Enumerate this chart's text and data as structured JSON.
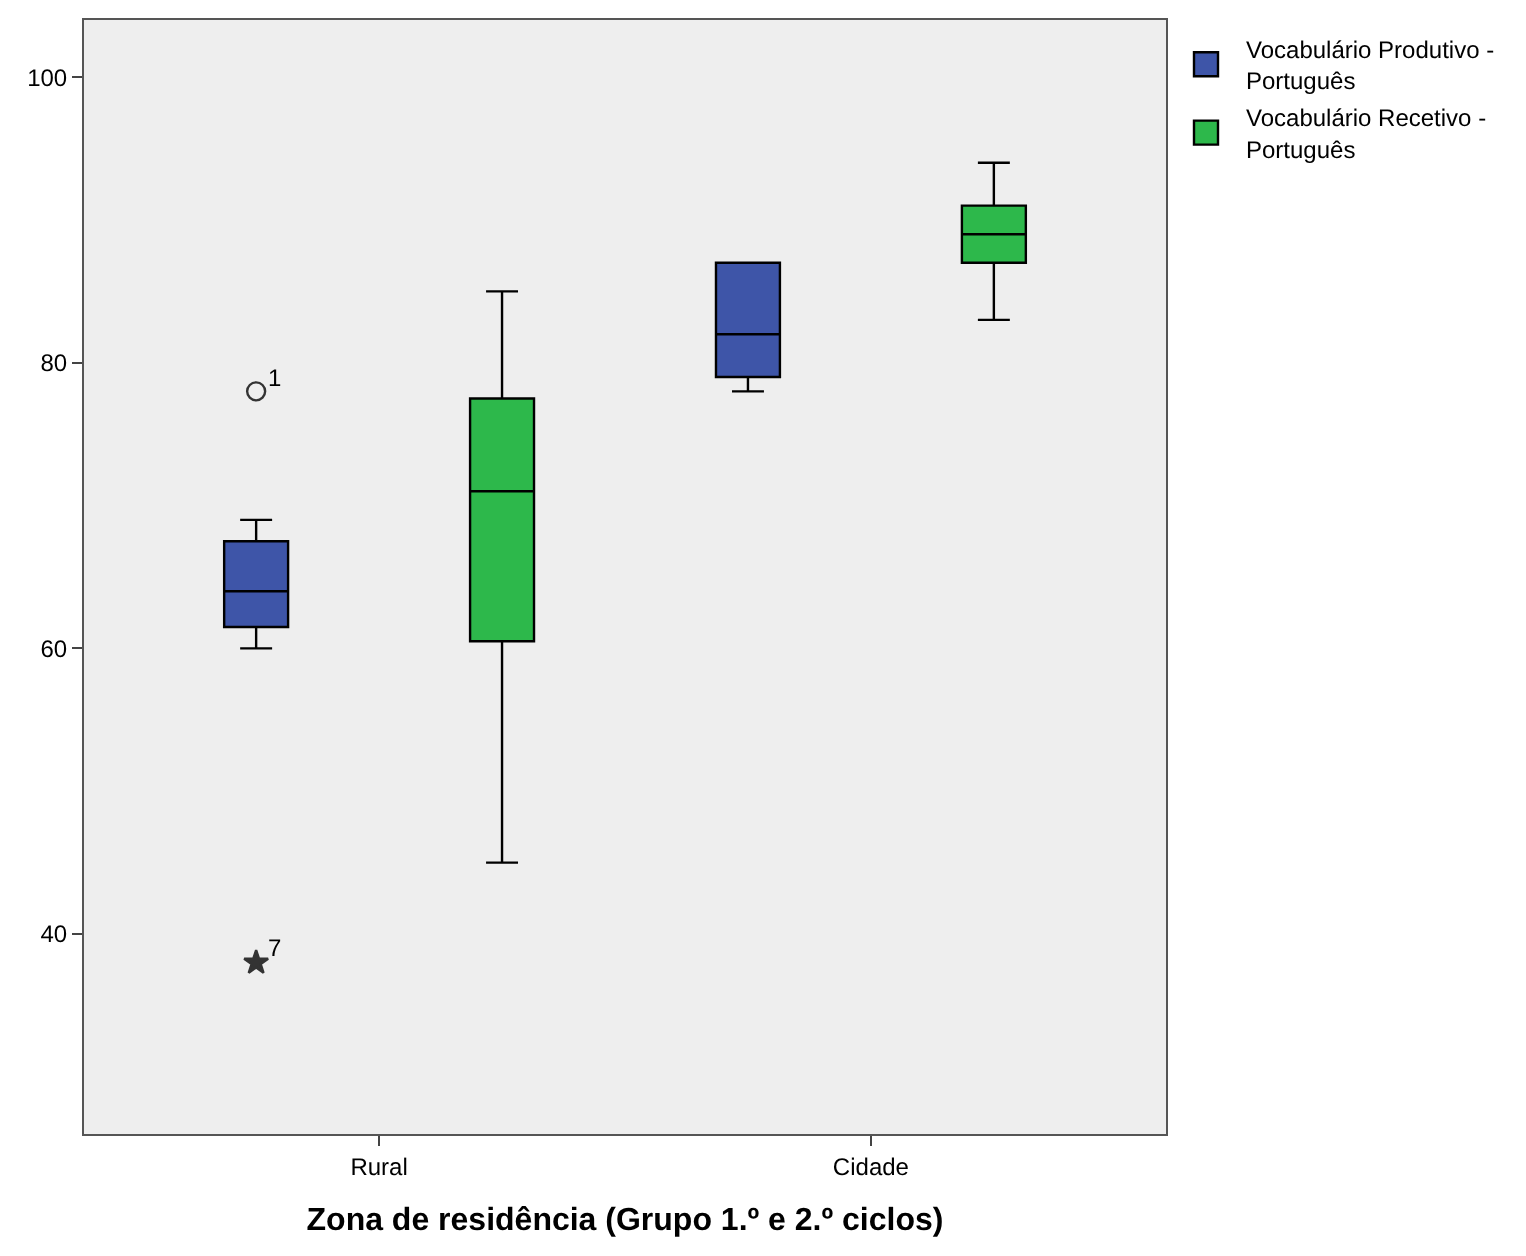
{
  "chart_data": {
    "type": "box",
    "xlabel": "Zona de residência (Grupo 1.º e 2.º ciclos)",
    "categories": [
      "Rural",
      "Cidade"
    ],
    "series": [
      {
        "name": "Vocabulário Produtivo - Português",
        "color": "#3e55a8",
        "boxes": [
          {
            "low": 60,
            "q1": 61.5,
            "median": 64,
            "q3": 67.5,
            "high": 69,
            "outliers": [
              78,
              38
            ]
          },
          {
            "low": 78,
            "q1": 79,
            "median": 82,
            "q3": 87,
            "high": 87
          }
        ]
      },
      {
        "name": "Vocabulário Recetivo - Português",
        "color": "#2db84b",
        "boxes": [
          {
            "low": 45,
            "q1": 60.5,
            "median": 71,
            "q3": 77.5,
            "high": 85
          },
          {
            "low": 83,
            "q1": 87,
            "median": 89,
            "q3": 91,
            "high": 94
          }
        ]
      }
    ],
    "annotations": [
      "1",
      "7"
    ],
    "ylim": [
      26,
      104
    ],
    "yticks": [
      40,
      60,
      80,
      100
    ],
    "grid": false,
    "legend": "top right"
  }
}
